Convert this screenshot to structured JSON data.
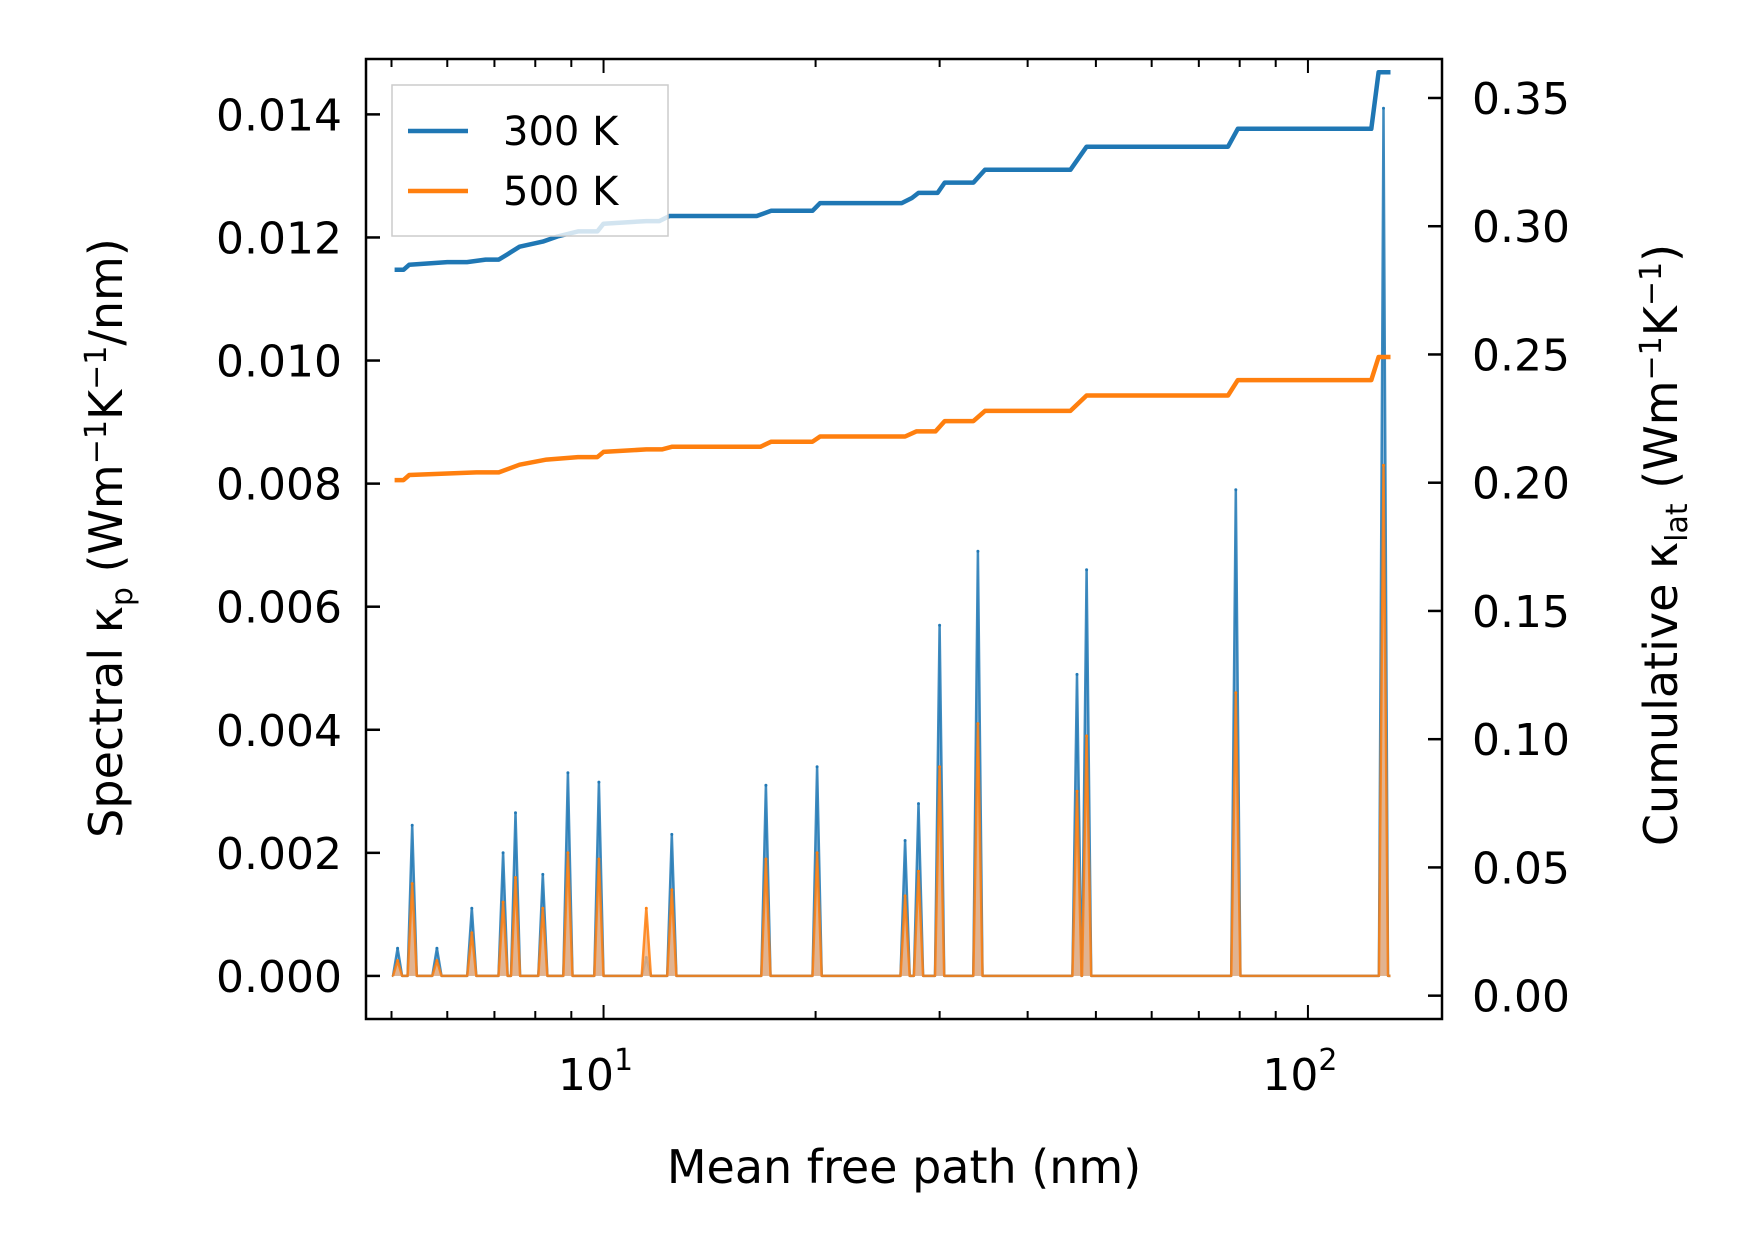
{
  "chart_data": {
    "type": "line",
    "xscale": "log",
    "xlim": [
      4.6,
      155
    ],
    "xlabel": "Mean free path (nm)",
    "xticks": [
      {
        "value": 10,
        "base": "10",
        "exp": "1"
      },
      {
        "value": 100,
        "base": "10",
        "exp": "2"
      }
    ],
    "left_axis": {
      "label_parts": {
        "pre": "Spectral κ",
        "sub": "p",
        "mid": " (Wm",
        "sup1": "−1",
        "mid2": "K",
        "sup2": "−1",
        "post": "/nm)"
      },
      "ylim": [
        -0.0007,
        0.0149
      ],
      "ticks": [
        "0.000",
        "0.002",
        "0.004",
        "0.006",
        "0.008",
        "0.010",
        "0.012",
        "0.014"
      ]
    },
    "right_axis": {
      "label_parts": {
        "pre": "Cumulative κ",
        "sub": "lat",
        "mid": " (Wm",
        "sup1": "−1",
        "mid2": "K",
        "sup2": "−1",
        "post": ")"
      },
      "ylim": [
        -0.0091,
        0.3652
      ],
      "ticks": [
        "0.00",
        "0.05",
        "0.10",
        "0.15",
        "0.20",
        "0.25",
        "0.30",
        "0.35"
      ]
    },
    "legend": {
      "position": "upper-left",
      "entries": [
        {
          "name": "300 K",
          "color": "#1f77b4"
        },
        {
          "name": "500 K",
          "color": "#ff7f0e"
        }
      ]
    },
    "cumulative_series": [
      {
        "name": "300 K",
        "color": "#1f77b4",
        "points": [
          [
            5.05,
            0.283
          ],
          [
            5.2,
            0.283
          ],
          [
            5.3,
            0.285
          ],
          [
            6.0,
            0.286
          ],
          [
            6.4,
            0.286
          ],
          [
            6.8,
            0.287
          ],
          [
            7.1,
            0.287
          ],
          [
            7.3,
            0.289
          ],
          [
            7.6,
            0.292
          ],
          [
            8.2,
            0.294
          ],
          [
            8.6,
            0.296
          ],
          [
            9.2,
            0.298
          ],
          [
            9.8,
            0.298
          ],
          [
            10,
            0.301
          ],
          [
            11.5,
            0.302
          ],
          [
            12.0,
            0.302
          ],
          [
            12.4,
            0.304
          ],
          [
            16.5,
            0.304
          ],
          [
            17.3,
            0.306
          ],
          [
            19.8,
            0.306
          ],
          [
            20.3,
            0.309
          ],
          [
            26.5,
            0.309
          ],
          [
            27.4,
            0.311
          ],
          [
            28.0,
            0.313
          ],
          [
            29.8,
            0.313
          ],
          [
            30.5,
            0.317
          ],
          [
            33.5,
            0.317
          ],
          [
            34.8,
            0.322
          ],
          [
            46.0,
            0.322
          ],
          [
            48.5,
            0.331
          ],
          [
            77,
            0.331
          ],
          [
            79.5,
            0.338
          ],
          [
            123,
            0.338
          ],
          [
            126,
            0.36
          ],
          [
            131,
            0.36
          ]
        ]
      },
      {
        "name": "500 K",
        "color": "#ff7f0e",
        "points": [
          [
            5.05,
            0.201
          ],
          [
            5.2,
            0.201
          ],
          [
            5.3,
            0.203
          ],
          [
            6.6,
            0.204
          ],
          [
            7.1,
            0.204
          ],
          [
            7.6,
            0.207
          ],
          [
            8.3,
            0.209
          ],
          [
            9.2,
            0.21
          ],
          [
            9.8,
            0.21
          ],
          [
            10,
            0.212
          ],
          [
            11.5,
            0.213
          ],
          [
            12.1,
            0.213
          ],
          [
            12.5,
            0.214
          ],
          [
            16.7,
            0.214
          ],
          [
            17.3,
            0.216
          ],
          [
            19.8,
            0.216
          ],
          [
            20.3,
            0.218
          ],
          [
            26.8,
            0.218
          ],
          [
            27.8,
            0.22
          ],
          [
            29.6,
            0.22
          ],
          [
            30.5,
            0.224
          ],
          [
            33.5,
            0.224
          ],
          [
            34.8,
            0.228
          ],
          [
            46.0,
            0.228
          ],
          [
            48.5,
            0.234
          ],
          [
            77,
            0.234
          ],
          [
            79.5,
            0.24
          ],
          [
            123,
            0.24
          ],
          [
            126,
            0.249
          ],
          [
            131,
            0.249
          ]
        ]
      }
    ],
    "spectral_series": [
      {
        "name": "300 K",
        "color": "#1f77b4",
        "fill": "#8ab5d6",
        "peaks": [
          [
            5.1,
            0.00045
          ],
          [
            5.35,
            0.00245
          ],
          [
            5.8,
            0.00045
          ],
          [
            6.5,
            0.0011
          ],
          [
            7.2,
            0.002
          ],
          [
            7.5,
            0.00265
          ],
          [
            8.2,
            0.00165
          ],
          [
            8.9,
            0.0033
          ],
          [
            9.85,
            0.00315
          ],
          [
            11.5,
            0.0003
          ],
          [
            12.5,
            0.0023
          ],
          [
            17.0,
            0.0031
          ],
          [
            20.1,
            0.0034
          ],
          [
            26.8,
            0.0022
          ],
          [
            28.0,
            0.0028
          ],
          [
            30.0,
            0.0057
          ],
          [
            34.0,
            0.0069
          ],
          [
            47.0,
            0.0049
          ],
          [
            48.5,
            0.0066
          ],
          [
            79.0,
            0.0079
          ],
          [
            128.0,
            0.0141
          ]
        ]
      },
      {
        "name": "500 K",
        "color": "#ff7f0e",
        "fill": "#f5b27e",
        "peaks": [
          [
            5.1,
            0.00025
          ],
          [
            5.35,
            0.0015
          ],
          [
            5.8,
            0.00025
          ],
          [
            6.5,
            0.0007
          ],
          [
            7.2,
            0.0012
          ],
          [
            7.5,
            0.0016
          ],
          [
            8.2,
            0.0011
          ],
          [
            8.9,
            0.002
          ],
          [
            9.85,
            0.0019
          ],
          [
            11.5,
            0.0011
          ],
          [
            12.5,
            0.0014
          ],
          [
            17.0,
            0.0019
          ],
          [
            20.1,
            0.002
          ],
          [
            26.8,
            0.0013
          ],
          [
            28.0,
            0.0017
          ],
          [
            30.0,
            0.0034
          ],
          [
            34.0,
            0.0041
          ],
          [
            47.0,
            0.003
          ],
          [
            48.5,
            0.0039
          ],
          [
            79.0,
            0.0046
          ],
          [
            128.0,
            0.0083
          ]
        ]
      }
    ]
  }
}
